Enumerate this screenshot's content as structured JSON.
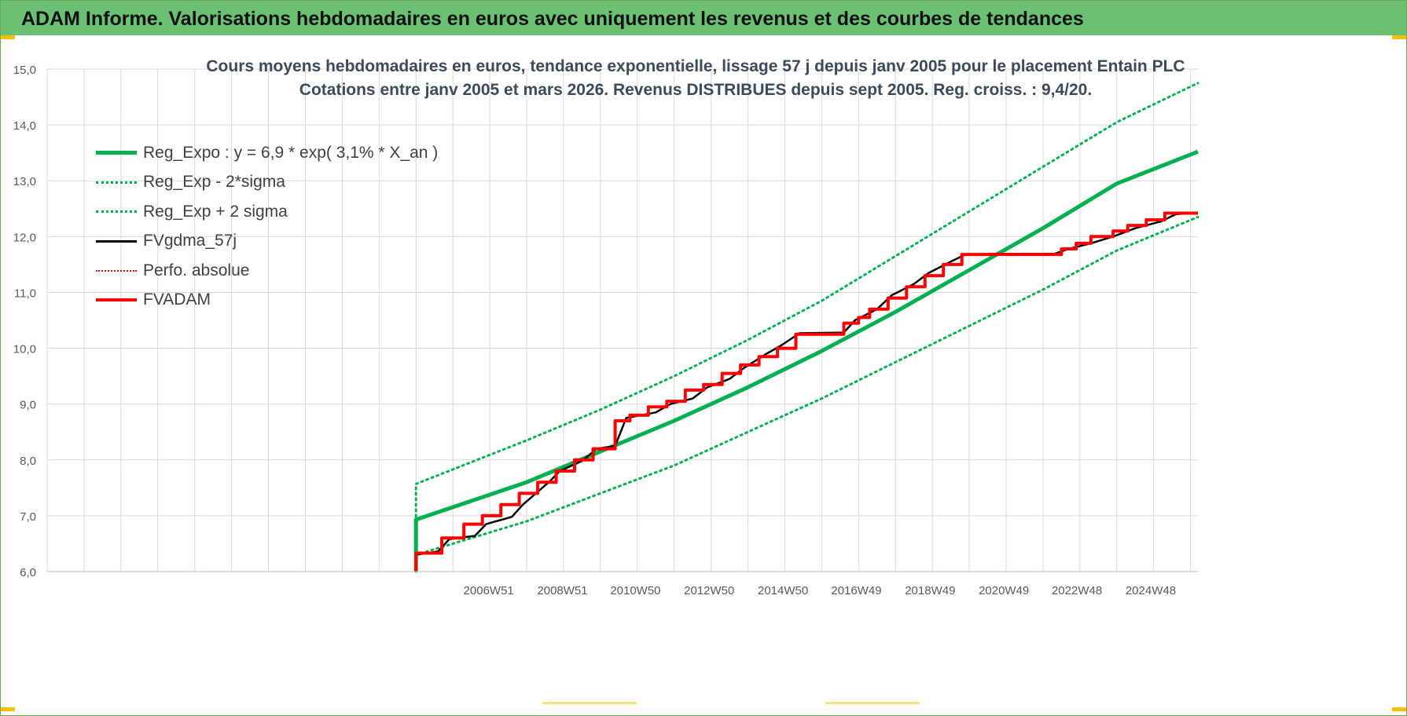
{
  "banner": {
    "title": "ADAM Informe. Valorisations hebdomadaires en euros avec uniquement les revenus et des courbes de tendances"
  },
  "colors": {
    "banner_bg": "#6bc073",
    "green": "#00b050",
    "black": "#000000",
    "red": "#ff0000",
    "grid": "#d9d9d9"
  },
  "chart_data": {
    "type": "line",
    "title_line1": "Cours moyens hebdomadaires en euros, tendance exponentielle, lissage 57 j depuis janv 2005  pour le placement Entain PLC",
    "title_line2": "Cotations entre janv 2005 et mars 2026. Revenus DISTRIBUES depuis sept 2005. Reg. croiss. : 9,4/20.",
    "ylim": [
      6.0,
      15.0
    ],
    "y_ticks": [
      "6,0",
      "7,0",
      "8,0",
      "9,0",
      "10,0",
      "11,0",
      "12,0",
      "13,0",
      "14,0",
      "15,0"
    ],
    "x_range": [
      1995.0,
      2026.2
    ],
    "x_tick_labels": [
      {
        "label": "2006W51",
        "x": 2006.97
      },
      {
        "label": "2008W51",
        "x": 2008.97
      },
      {
        "label": "2010W50",
        "x": 2010.95
      },
      {
        "label": "2012W50",
        "x": 2012.95
      },
      {
        "label": "2014W50",
        "x": 2014.95
      },
      {
        "label": "2016W49",
        "x": 2016.94
      },
      {
        "label": "2018W49",
        "x": 2018.94
      },
      {
        "label": "2020W49",
        "x": 2020.94
      },
      {
        "label": "2022W48",
        "x": 2022.92
      },
      {
        "label": "2024W48",
        "x": 2024.92
      }
    ],
    "x_grid_every_year": true,
    "grid": true,
    "legend_position": "top-left",
    "series": [
      {
        "name": "Reg_Expo : y = 6,9 * exp( 3,1% *  X_an )",
        "style": "solid",
        "color": "#00b050",
        "width": 5,
        "points": [
          [
            2005.0,
            6.0
          ],
          [
            2005.0,
            6.93
          ],
          [
            2008.0,
            7.6
          ],
          [
            2010.0,
            8.15
          ],
          [
            2012.0,
            8.7
          ],
          [
            2014.0,
            9.3
          ],
          [
            2016.0,
            9.95
          ],
          [
            2018.0,
            10.65
          ],
          [
            2020.0,
            11.4
          ],
          [
            2022.0,
            12.15
          ],
          [
            2024.0,
            12.95
          ],
          [
            2026.2,
            13.52
          ]
        ]
      },
      {
        "name": "Reg_Exp - 2*sigma",
        "style": "dotted",
        "color": "#00b050",
        "width": 3,
        "points": [
          [
            2005.0,
            6.0
          ],
          [
            2005.0,
            6.3
          ],
          [
            2008.0,
            6.9
          ],
          [
            2010.0,
            7.4
          ],
          [
            2012.0,
            7.9
          ],
          [
            2014.0,
            8.5
          ],
          [
            2016.0,
            9.1
          ],
          [
            2018.0,
            9.75
          ],
          [
            2020.0,
            10.4
          ],
          [
            2022.0,
            11.05
          ],
          [
            2024.0,
            11.75
          ],
          [
            2026.2,
            12.35
          ]
        ]
      },
      {
        "name": "Reg_Exp + 2 sigma",
        "style": "dotted",
        "color": "#00b050",
        "width": 3,
        "points": [
          [
            2005.0,
            6.0
          ],
          [
            2005.0,
            7.57
          ],
          [
            2008.0,
            8.35
          ],
          [
            2010.0,
            8.9
          ],
          [
            2012.0,
            9.5
          ],
          [
            2014.0,
            10.15
          ],
          [
            2016.0,
            10.85
          ],
          [
            2018.0,
            11.65
          ],
          [
            2020.0,
            12.45
          ],
          [
            2022.0,
            13.25
          ],
          [
            2024.0,
            14.05
          ],
          [
            2026.2,
            14.75
          ]
        ]
      },
      {
        "name": "FVgdma_57j",
        "style": "solid",
        "color": "#000000",
        "width": 2.5,
        "points": [
          [
            2005.0,
            6.0
          ],
          [
            2005.0,
            6.3
          ],
          [
            2005.6,
            6.36
          ],
          [
            2005.9,
            6.58
          ],
          [
            2006.6,
            6.64
          ],
          [
            2006.9,
            6.85
          ],
          [
            2007.6,
            6.98
          ],
          [
            2007.9,
            7.2
          ],
          [
            2008.6,
            7.6
          ],
          [
            2008.9,
            7.8
          ],
          [
            2009.5,
            7.98
          ],
          [
            2009.9,
            8.2
          ],
          [
            2010.4,
            8.25
          ],
          [
            2010.7,
            8.75
          ],
          [
            2011.5,
            8.85
          ],
          [
            2011.9,
            9.0
          ],
          [
            2012.5,
            9.1
          ],
          [
            2012.9,
            9.3
          ],
          [
            2013.5,
            9.45
          ],
          [
            2013.9,
            9.65
          ],
          [
            2014.5,
            9.9
          ],
          [
            2014.9,
            10.05
          ],
          [
            2015.4,
            10.27
          ],
          [
            2016.6,
            10.28
          ],
          [
            2016.9,
            10.5
          ],
          [
            2017.5,
            10.7
          ],
          [
            2017.9,
            10.95
          ],
          [
            2018.5,
            11.15
          ],
          [
            2018.9,
            11.35
          ],
          [
            2019.5,
            11.55
          ],
          [
            2019.9,
            11.68
          ],
          [
            2020.8,
            11.69
          ],
          [
            2022.3,
            11.69
          ],
          [
            2022.7,
            11.78
          ],
          [
            2023.3,
            11.88
          ],
          [
            2023.9,
            12.0
          ],
          [
            2024.5,
            12.15
          ],
          [
            2025.2,
            12.27
          ],
          [
            2025.6,
            12.4
          ],
          [
            2026.2,
            12.43
          ]
        ]
      },
      {
        "name": "Perfo. absolue",
        "style": "dotted",
        "color": "#ff0000",
        "width": 2,
        "points": []
      },
      {
        "name": "FVADAM",
        "style": "steps",
        "color": "#ff0000",
        "width": 4,
        "points": [
          [
            2005.0,
            6.0
          ],
          [
            2005.0,
            6.33
          ],
          [
            2005.7,
            6.33
          ],
          [
            2005.7,
            6.6
          ],
          [
            2006.3,
            6.6
          ],
          [
            2006.3,
            6.85
          ],
          [
            2006.8,
            6.85
          ],
          [
            2006.8,
            7.0
          ],
          [
            2007.3,
            7.0
          ],
          [
            2007.3,
            7.2
          ],
          [
            2007.8,
            7.2
          ],
          [
            2007.8,
            7.4
          ],
          [
            2008.3,
            7.4
          ],
          [
            2008.3,
            7.6
          ],
          [
            2008.8,
            7.6
          ],
          [
            2008.8,
            7.8
          ],
          [
            2009.3,
            7.8
          ],
          [
            2009.3,
            8.0
          ],
          [
            2009.8,
            8.0
          ],
          [
            2009.8,
            8.2
          ],
          [
            2010.4,
            8.2
          ],
          [
            2010.4,
            8.7
          ],
          [
            2010.8,
            8.7
          ],
          [
            2010.8,
            8.8
          ],
          [
            2011.3,
            8.8
          ],
          [
            2011.3,
            8.95
          ],
          [
            2011.8,
            8.95
          ],
          [
            2011.8,
            9.05
          ],
          [
            2012.3,
            9.05
          ],
          [
            2012.3,
            9.25
          ],
          [
            2012.8,
            9.25
          ],
          [
            2012.8,
            9.35
          ],
          [
            2013.3,
            9.35
          ],
          [
            2013.3,
            9.55
          ],
          [
            2013.8,
            9.55
          ],
          [
            2013.8,
            9.7
          ],
          [
            2014.3,
            9.7
          ],
          [
            2014.3,
            9.85
          ],
          [
            2014.8,
            9.85
          ],
          [
            2014.8,
            10.0
          ],
          [
            2015.3,
            10.0
          ],
          [
            2015.3,
            10.25
          ],
          [
            2016.6,
            10.25
          ],
          [
            2016.6,
            10.45
          ],
          [
            2017.0,
            10.45
          ],
          [
            2017.0,
            10.55
          ],
          [
            2017.3,
            10.55
          ],
          [
            2017.3,
            10.7
          ],
          [
            2017.8,
            10.7
          ],
          [
            2017.8,
            10.9
          ],
          [
            2018.3,
            10.9
          ],
          [
            2018.3,
            11.1
          ],
          [
            2018.8,
            11.1
          ],
          [
            2018.8,
            11.3
          ],
          [
            2019.3,
            11.3
          ],
          [
            2019.3,
            11.5
          ],
          [
            2019.8,
            11.5
          ],
          [
            2019.8,
            11.68
          ],
          [
            2022.5,
            11.68
          ],
          [
            2022.5,
            11.78
          ],
          [
            2022.9,
            11.78
          ],
          [
            2022.9,
            11.88
          ],
          [
            2023.3,
            11.88
          ],
          [
            2023.3,
            12.0
          ],
          [
            2023.9,
            12.0
          ],
          [
            2023.9,
            12.1
          ],
          [
            2024.3,
            12.1
          ],
          [
            2024.3,
            12.2
          ],
          [
            2024.8,
            12.2
          ],
          [
            2024.8,
            12.3
          ],
          [
            2025.3,
            12.3
          ],
          [
            2025.3,
            12.42
          ],
          [
            2026.2,
            12.42
          ]
        ]
      }
    ]
  }
}
